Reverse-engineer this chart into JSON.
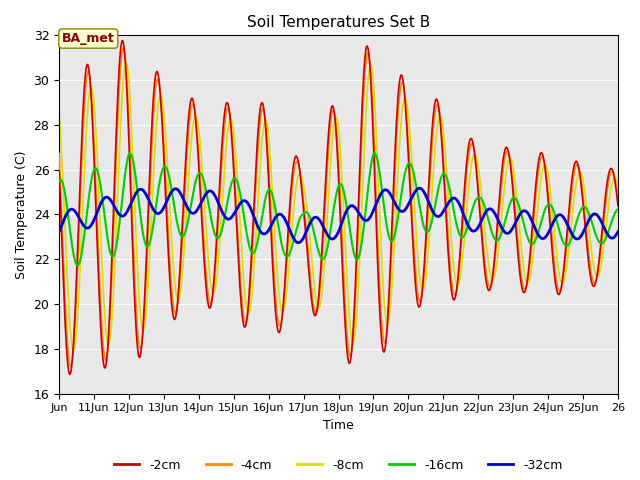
{
  "title": "Soil Temperatures Set B",
  "xlabel": "Time",
  "ylabel": "Soil Temperature (C)",
  "ylim": [
    16,
    32
  ],
  "xlim_days": [
    10,
    26
  ],
  "annotation": "BA_met",
  "bg_color": "#e8e8e8",
  "line_colors": {
    "-2cm": "#cc0000",
    "-4cm": "#ff8800",
    "-8cm": "#dddd00",
    "-16cm": "#00cc00",
    "-32cm": "#0000cc"
  },
  "line_widths": {
    "-2cm": 1.2,
    "-4cm": 1.2,
    "-8cm": 1.2,
    "-16cm": 1.5,
    "-32cm": 2.0
  },
  "yticks": [
    16,
    18,
    20,
    22,
    24,
    26,
    28,
    30,
    32
  ],
  "xtick_labels": [
    "Jun",
    "11Jun",
    "12Jun",
    "13Jun",
    "14Jun",
    "15Jun",
    "16Jun",
    "17Jun",
    "18Jun",
    "19Jun",
    "20Jun",
    "21Jun",
    "22Jun",
    "23Jun",
    "24Jun",
    "25Jun",
    "26"
  ],
  "xtick_positions": [
    10,
    11,
    12,
    13,
    14,
    15,
    16,
    17,
    18,
    19,
    20,
    21,
    22,
    23,
    24,
    25,
    26
  ],
  "legend_labels": [
    "-2cm",
    "-4cm",
    "-8cm",
    "-16cm",
    "-32cm"
  ]
}
